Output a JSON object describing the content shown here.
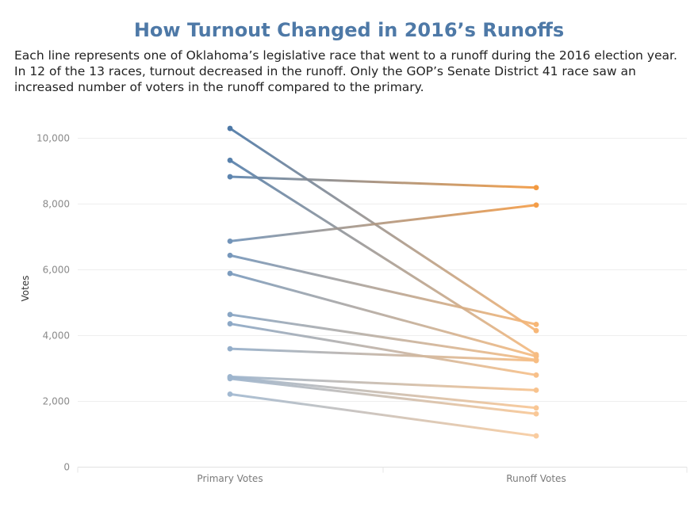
{
  "header": {
    "title": "How Turnout Changed in 2016’s Runoffs",
    "subtitle": "Each line represents one of Oklahoma’s legislative race that went to a runoff during the 2016 election year. In 12 of the 13 races, turnout decreased in the runoff. Only the GOP’s Senate District 41 race saw an increased number of voters in the runoff compared to the primary."
  },
  "chart_data": {
    "type": "line",
    "title": "How Turnout Changed in 2016’s Runoffs",
    "xlabel": "",
    "ylabel": "Votes",
    "categories": [
      "Primary Votes",
      "Runoff Votes"
    ],
    "ylim": [
      0,
      10500
    ],
    "yticks": [
      0,
      2000,
      4000,
      6000,
      8000,
      10000
    ],
    "ytick_labels": [
      "0",
      "2,000",
      "4,000",
      "6,000",
      "8,000",
      "10,000"
    ],
    "grid": true,
    "legend": "none",
    "color_start": "#4e79a7",
    "color_end": "#f28e2b",
    "series": [
      {
        "values": [
          10300,
          4150
        ]
      },
      {
        "values": [
          9330,
          3420
        ]
      },
      {
        "values": [
          8830,
          8500
        ]
      },
      {
        "values": [
          6870,
          7970
        ]
      },
      {
        "values": [
          6440,
          4340
        ]
      },
      {
        "values": [
          5890,
          3370
        ]
      },
      {
        "values": [
          4640,
          3260
        ]
      },
      {
        "values": [
          4360,
          2800
        ]
      },
      {
        "values": [
          3600,
          3240
        ]
      },
      {
        "values": [
          2750,
          2340
        ]
      },
      {
        "values": [
          2730,
          1800
        ]
      },
      {
        "values": [
          2690,
          1620
        ]
      },
      {
        "values": [
          2220,
          950
        ]
      }
    ]
  }
}
